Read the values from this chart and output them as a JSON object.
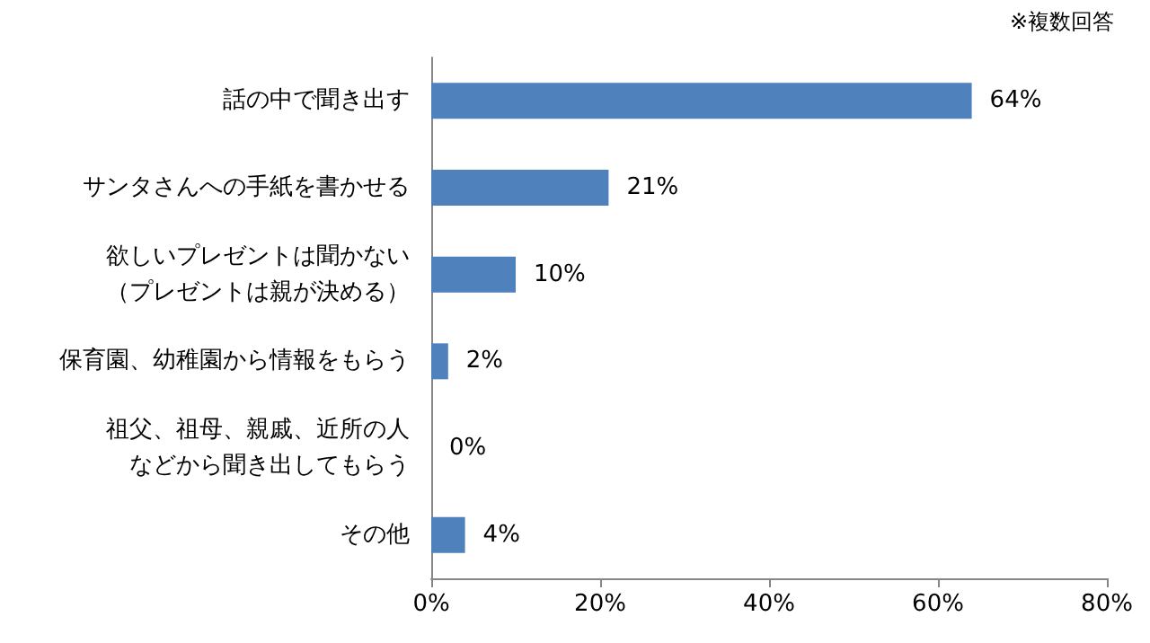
{
  "chart_data": {
    "type": "bar",
    "orientation": "horizontal",
    "categories": [
      "話の中で聞き出す",
      "サンタさんへの手紙を書かせる",
      "欲しいプレゼントは聞かない（プレゼントは親が決める）",
      "保育園、幼稚園から情報をもらう",
      "祖父、祖母、親戚、近所の人などから聞き出してもらう",
      "その他"
    ],
    "values": [
      64,
      21,
      10,
      2,
      0,
      4
    ],
    "value_labels": [
      "64%",
      "21%",
      "10%",
      "2%",
      "0%",
      "4%"
    ],
    "color": "#4f81bd",
    "xlim": [
      0,
      80
    ],
    "xticks": [
      {
        "value": 0,
        "label": "0%"
      },
      {
        "value": 20,
        "label": "20%"
      },
      {
        "value": 40,
        "label": "40%"
      },
      {
        "value": 60,
        "label": "60%"
      },
      {
        "value": 80,
        "label": "80%"
      }
    ],
    "annotations": [
      "※複数回答"
    ],
    "grid": false
  }
}
